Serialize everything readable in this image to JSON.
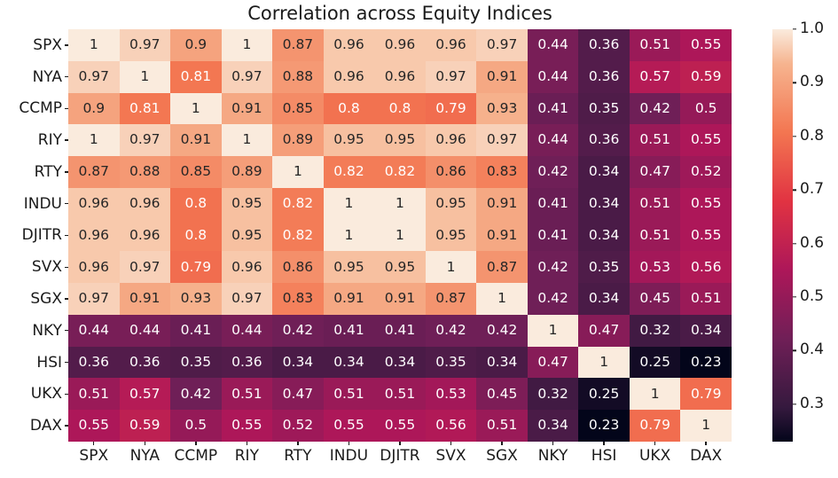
{
  "chart_data": {
    "type": "heatmap",
    "title": "Correlation across Equity Indices",
    "labels": [
      "SPX",
      "NYA",
      "CCMP",
      "RIY",
      "RTY",
      "INDU",
      "DJITR",
      "SVX",
      "SGX",
      "NKY",
      "HSI",
      "UKX",
      "DAX"
    ],
    "matrix": [
      [
        1,
        0.97,
        0.9,
        1,
        0.87,
        0.96,
        0.96,
        0.96,
        0.97,
        0.44,
        0.36,
        0.51,
        0.55
      ],
      [
        0.97,
        1,
        0.81,
        0.97,
        0.88,
        0.96,
        0.96,
        0.97,
        0.91,
        0.44,
        0.36,
        0.57,
        0.59
      ],
      [
        0.9,
        0.81,
        1,
        0.91,
        0.85,
        0.8,
        0.8,
        0.79,
        0.93,
        0.41,
        0.35,
        0.42,
        0.5
      ],
      [
        1,
        0.97,
        0.91,
        1,
        0.89,
        0.95,
        0.95,
        0.96,
        0.97,
        0.44,
        0.36,
        0.51,
        0.55
      ],
      [
        0.87,
        0.88,
        0.85,
        0.89,
        1,
        0.82,
        0.82,
        0.86,
        0.83,
        0.42,
        0.34,
        0.47,
        0.52
      ],
      [
        0.96,
        0.96,
        0.8,
        0.95,
        0.82,
        1,
        1,
        0.95,
        0.91,
        0.41,
        0.34,
        0.51,
        0.55
      ],
      [
        0.96,
        0.96,
        0.8,
        0.95,
        0.82,
        1,
        1,
        0.95,
        0.91,
        0.41,
        0.34,
        0.51,
        0.55
      ],
      [
        0.96,
        0.97,
        0.79,
        0.96,
        0.86,
        0.95,
        0.95,
        1,
        0.87,
        0.42,
        0.35,
        0.53,
        0.56
      ],
      [
        0.97,
        0.91,
        0.93,
        0.97,
        0.83,
        0.91,
        0.91,
        0.87,
        1,
        0.42,
        0.34,
        0.45,
        0.51
      ],
      [
        0.44,
        0.44,
        0.41,
        0.44,
        0.42,
        0.41,
        0.41,
        0.42,
        0.42,
        1,
        0.47,
        0.32,
        0.34
      ],
      [
        0.36,
        0.36,
        0.35,
        0.36,
        0.34,
        0.34,
        0.34,
        0.35,
        0.34,
        0.47,
        1,
        0.25,
        0.23
      ],
      [
        0.51,
        0.57,
        0.42,
        0.51,
        0.47,
        0.51,
        0.51,
        0.53,
        0.45,
        0.32,
        0.25,
        1,
        0.79
      ],
      [
        0.55,
        0.59,
        0.5,
        0.55,
        0.52,
        0.55,
        0.55,
        0.56,
        0.51,
        0.34,
        0.23,
        0.79,
        1
      ]
    ],
    "vmin": 0.23,
    "vmax": 1.0,
    "colorbar_ticks": [
      "1.0",
      "0.9",
      "0.8",
      "0.7",
      "0.6",
      "0.5",
      "0.4",
      "0.3"
    ],
    "legend_position": "right",
    "grid": false,
    "colormap": {
      "name": "rocket",
      "anchors": [
        {
          "t": 0.0,
          "color": "#03051A"
        },
        {
          "t": 0.0833,
          "color": "#35193E"
        },
        {
          "t": 0.25,
          "color": "#701F57"
        },
        {
          "t": 0.4167,
          "color": "#AD1759"
        },
        {
          "t": 0.5833,
          "color": "#E13342"
        },
        {
          "t": 0.75,
          "color": "#F37651"
        },
        {
          "t": 0.9167,
          "color": "#F6B48F"
        },
        {
          "t": 1.0,
          "color": "#FAEBDD"
        }
      ]
    },
    "annotation_colors": {
      "light_text": "#FFFFFF",
      "dark_text": "#262626",
      "dark_text_threshold": 0.83
    }
  }
}
